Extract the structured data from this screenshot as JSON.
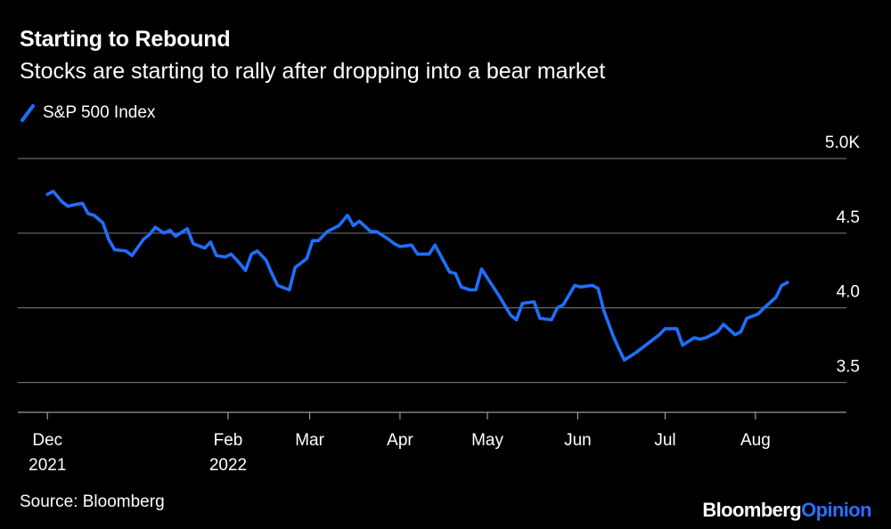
{
  "header": {
    "title": "Starting to Rebound",
    "subtitle": "Stocks are starting to rally after dropping into a bear market"
  },
  "legend": {
    "label": "S&P 500 Index",
    "color": "#1f6fff"
  },
  "footer": {
    "source": "Source: Bloomberg",
    "logo_main": "Bloomberg",
    "logo_accent": "Opinion"
  },
  "chart_data": {
    "type": "line",
    "title": "Starting to Rebound",
    "subtitle": "Stocks are starting to rally after dropping into a bear market",
    "ylabel": "",
    "xlabel": "",
    "yunit": "thousands of index points",
    "ylim": [
      3.3,
      5.0
    ],
    "yticks": [
      {
        "value": 3.5,
        "label": "3.5"
      },
      {
        "value": 4.0,
        "label": "4.0"
      },
      {
        "value": 4.5,
        "label": "4.5"
      },
      {
        "value": 5.0,
        "label": "5.0K"
      }
    ],
    "xlim": [
      "2021-11-30",
      "2022-08-20"
    ],
    "xticks": [
      {
        "date": "2021-12-01",
        "label": "Dec",
        "sublabel": "2021"
      },
      {
        "date": "2022-02-01",
        "label": "Feb",
        "sublabel": "2022"
      },
      {
        "date": "2022-03-01",
        "label": "Mar",
        "sublabel": ""
      },
      {
        "date": "2022-04-01",
        "label": "Apr",
        "sublabel": ""
      },
      {
        "date": "2022-05-01",
        "label": "May",
        "sublabel": ""
      },
      {
        "date": "2022-06-01",
        "label": "Jun",
        "sublabel": ""
      },
      {
        "date": "2022-07-01",
        "label": "Jul",
        "sublabel": ""
      },
      {
        "date": "2022-08-01",
        "label": "Aug",
        "sublabel": ""
      }
    ],
    "grid": true,
    "legend_position": "top-left",
    "series": [
      {
        "name": "S&P 500 Index",
        "color": "#1f6fff",
        "x": [
          "2021-12-01",
          "2021-12-03",
          "2021-12-06",
          "2021-12-08",
          "2021-12-10",
          "2021-12-13",
          "2021-12-15",
          "2021-12-17",
          "2021-12-20",
          "2021-12-22",
          "2021-12-24",
          "2021-12-28",
          "2021-12-30",
          "2022-01-03",
          "2022-01-05",
          "2022-01-07",
          "2022-01-10",
          "2022-01-12",
          "2022-01-14",
          "2022-01-18",
          "2022-01-20",
          "2022-01-24",
          "2022-01-26",
          "2022-01-28",
          "2022-01-31",
          "2022-02-02",
          "2022-02-04",
          "2022-02-07",
          "2022-02-09",
          "2022-02-11",
          "2022-02-14",
          "2022-02-16",
          "2022-02-18",
          "2022-02-22",
          "2022-02-24",
          "2022-02-28",
          "2022-03-02",
          "2022-03-04",
          "2022-03-07",
          "2022-03-09",
          "2022-03-11",
          "2022-03-14",
          "2022-03-16",
          "2022-03-18",
          "2022-03-22",
          "2022-03-24",
          "2022-03-28",
          "2022-03-30",
          "2022-04-01",
          "2022-04-05",
          "2022-04-07",
          "2022-04-11",
          "2022-04-13",
          "2022-04-18",
          "2022-04-20",
          "2022-04-22",
          "2022-04-25",
          "2022-04-27",
          "2022-04-29",
          "2022-05-03",
          "2022-05-05",
          "2022-05-09",
          "2022-05-11",
          "2022-05-13",
          "2022-05-17",
          "2022-05-19",
          "2022-05-23",
          "2022-05-25",
          "2022-05-27",
          "2022-05-31",
          "2022-06-02",
          "2022-06-06",
          "2022-06-08",
          "2022-06-10",
          "2022-06-13",
          "2022-06-15",
          "2022-06-17",
          "2022-06-21",
          "2022-06-23",
          "2022-06-27",
          "2022-06-29",
          "2022-07-01",
          "2022-07-05",
          "2022-07-07",
          "2022-07-11",
          "2022-07-13",
          "2022-07-15",
          "2022-07-19",
          "2022-07-21",
          "2022-07-25",
          "2022-07-27",
          "2022-07-29",
          "2022-08-02",
          "2022-08-04",
          "2022-08-08",
          "2022-08-10",
          "2022-08-12"
        ],
        "values": [
          4.76,
          4.78,
          4.71,
          4.68,
          4.69,
          4.7,
          4.63,
          4.62,
          4.57,
          4.46,
          4.39,
          4.38,
          4.35,
          4.46,
          4.49,
          4.54,
          4.5,
          4.52,
          4.48,
          4.53,
          4.43,
          4.4,
          4.44,
          4.35,
          4.34,
          4.36,
          4.32,
          4.25,
          4.36,
          4.38,
          4.32,
          4.23,
          4.15,
          4.12,
          4.27,
          4.33,
          4.45,
          4.45,
          4.51,
          4.53,
          4.55,
          4.62,
          4.55,
          4.58,
          4.51,
          4.51,
          4.46,
          4.43,
          4.41,
          4.42,
          4.36,
          4.36,
          4.42,
          4.24,
          4.23,
          4.14,
          4.12,
          4.12,
          4.26,
          4.14,
          4.08,
          3.95,
          3.92,
          4.03,
          4.04,
          3.93,
          3.92,
          4.0,
          4.02,
          4.15,
          4.14,
          4.15,
          4.13,
          3.98,
          3.82,
          3.73,
          3.65,
          3.7,
          3.73,
          3.79,
          3.82,
          3.86,
          3.86,
          3.75,
          3.8,
          3.79,
          3.8,
          3.84,
          3.89,
          3.82,
          3.84,
          3.93,
          3.96,
          4.0,
          4.07,
          4.15,
          4.17
        ]
      }
    ]
  }
}
